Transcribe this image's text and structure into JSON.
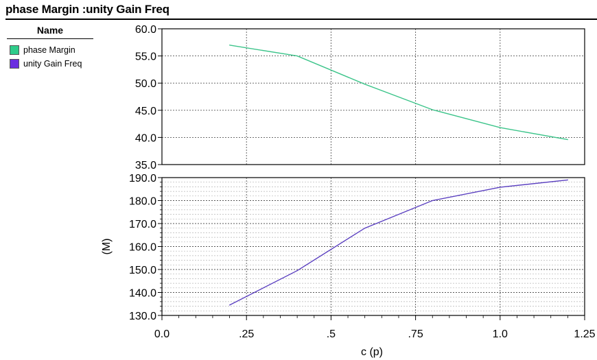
{
  "title": "phase Margin :unity Gain Freq",
  "legend": {
    "header": "Name",
    "items": [
      {
        "label": "phase Margin",
        "color": "#2ecc8a"
      },
      {
        "label": "unity Gain Freq",
        "color": "#6a2ee0"
      }
    ]
  },
  "chart_data": [
    {
      "type": "line",
      "x": [
        0.2,
        0.4,
        0.6,
        0.8,
        1.0,
        1.2
      ],
      "series": [
        {
          "name": "phase Margin",
          "color": "#3cc48a",
          "values": [
            57.0,
            55.0,
            49.8,
            45.1,
            41.8,
            39.6
          ]
        }
      ],
      "xlim": [
        0.0,
        1.25
      ],
      "ylim": [
        35.0,
        60.0
      ],
      "yticks": [
        35.0,
        40.0,
        45.0,
        50.0,
        55.0,
        60.0
      ],
      "ytick_labels": [
        "35.0",
        "40.0",
        "45.0",
        "50.0",
        "55.0",
        "60.0"
      ],
      "ylabel": "",
      "grid": true
    },
    {
      "type": "line",
      "x": [
        0.2,
        0.4,
        0.6,
        0.8,
        1.0,
        1.2
      ],
      "series": [
        {
          "name": "unity Gain Freq",
          "color": "#5a3fc0",
          "values": [
            134.5,
            149.5,
            168.0,
            180.0,
            185.8,
            189.0
          ]
        }
      ],
      "xlim": [
        0.0,
        1.25
      ],
      "ylim": [
        130.0,
        190.0
      ],
      "yticks": [
        130.0,
        140.0,
        150.0,
        160.0,
        170.0,
        180.0,
        190.0
      ],
      "ytick_labels": [
        "130.0",
        "140.0",
        "150.0",
        "160.0",
        "170.0",
        "180.0",
        "190.0"
      ],
      "ylabel": "(M)",
      "xlabel": "c (p)",
      "xticks": [
        0.0,
        0.25,
        0.5,
        0.75,
        1.0,
        1.25
      ],
      "xtick_labels": [
        "0.0",
        ".25",
        ".5",
        ".75",
        "1.0",
        "1.25"
      ],
      "grid": true
    }
  ]
}
